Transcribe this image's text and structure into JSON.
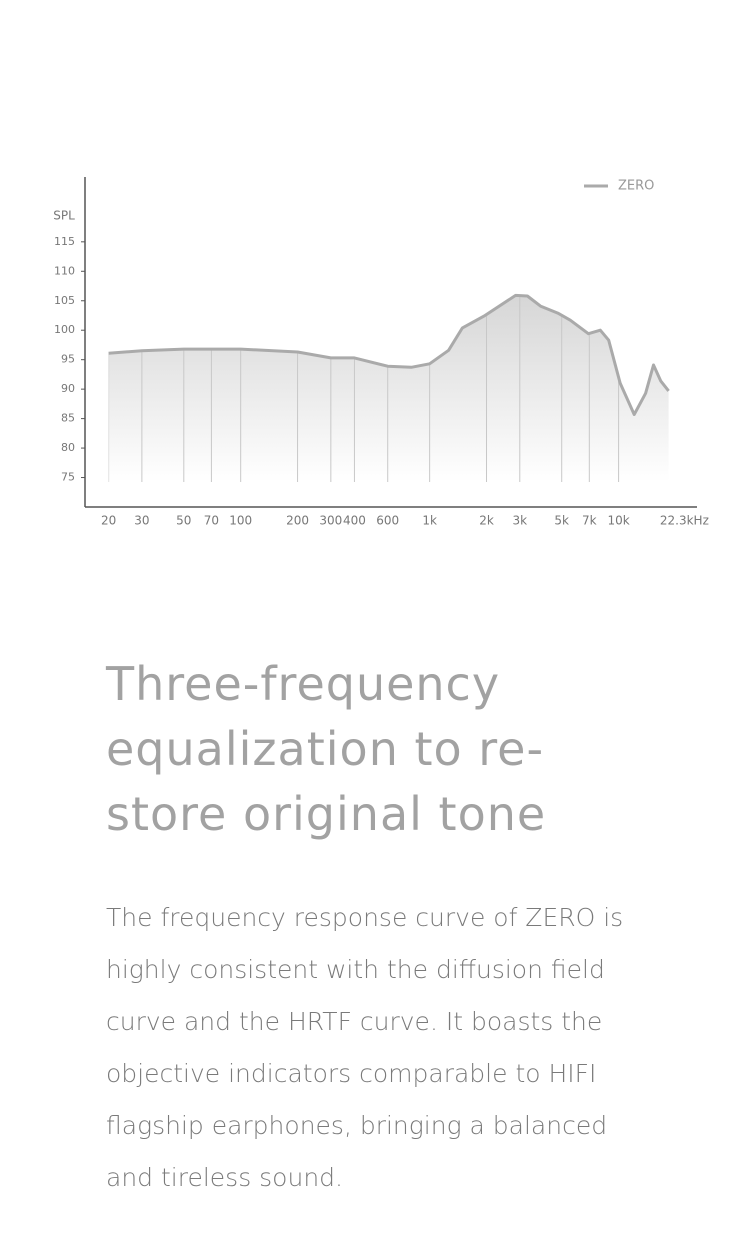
{
  "chart_data": {
    "type": "area",
    "ylabel": "SPL",
    "x": [
      20,
      30,
      50,
      70,
      100,
      200,
      300,
      400,
      600,
      800,
      1000,
      1260,
      1490,
      1940,
      2850,
      3290,
      3860,
      4770,
      5550,
      6920,
      8000,
      8860,
      10200,
      12100,
      13900,
      15300,
      16700,
      18400
    ],
    "series": [
      {
        "name": "ZERO",
        "color": "#aaaaaa",
        "values": [
          96.1,
          96.5,
          96.8,
          96.8,
          96.8,
          96.3,
          95.3,
          95.3,
          93.9,
          93.7,
          94.3,
          96.6,
          100.4,
          102.4,
          105.9,
          105.8,
          104.1,
          102.9,
          101.7,
          99.4,
          100.0,
          98.3,
          91.0,
          85.7,
          89.3,
          94.1,
          91.4,
          89.7
        ]
      }
    ],
    "xlim": [
      15,
      26000
    ],
    "xscale": "log",
    "xticks": [
      20,
      30,
      50,
      70,
      100,
      200,
      300,
      400,
      600,
      {
        "value": 1000,
        "label": "1k"
      },
      {
        "value": 2000,
        "label": "2k"
      },
      {
        "value": 3000,
        "label": "3k"
      },
      {
        "value": 5000,
        "label": "5k"
      },
      {
        "value": 7000,
        "label": "7k"
      },
      {
        "value": 10000,
        "label": "10k"
      },
      {
        "value": 22300,
        "label": "22.3kHz"
      }
    ],
    "ylim": [
      70,
      126
    ],
    "yticks": [
      75,
      80,
      85,
      90,
      95,
      100,
      105,
      110,
      115
    ],
    "grid": true,
    "legend": "top-right"
  },
  "text": {
    "heading": [
      "Three-frequency",
      "equalization to re-",
      "store original tone"
    ],
    "body": [
      "The frequency response curve of ZERO is",
      "highly consistent with the diffusion field",
      "curve and the HRTF curve. It boasts the",
      "objective indicators comparable to HIFI",
      "flagship earphones, bringing a balanced",
      "and tireless sound."
    ]
  }
}
